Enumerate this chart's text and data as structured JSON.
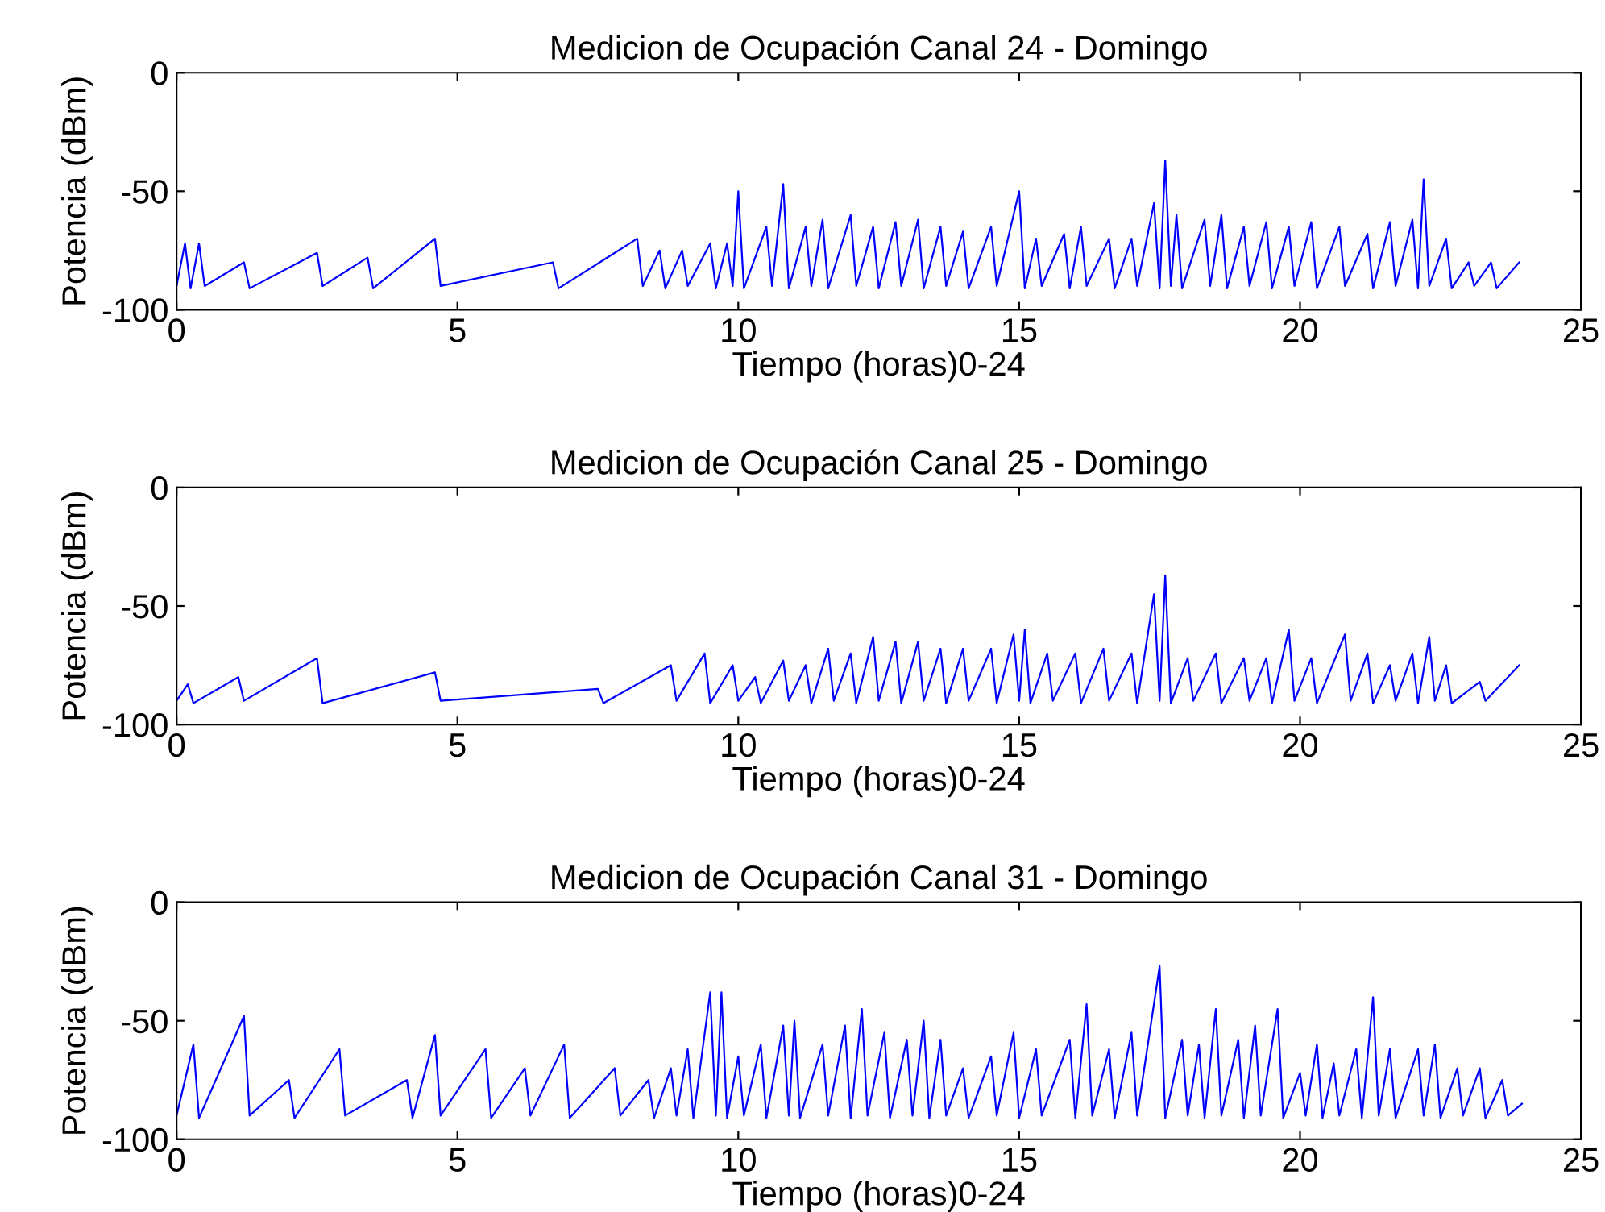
{
  "chart_data": [
    {
      "type": "line",
      "title": "Medicion de Ocupación Canal 24 - Domingo",
      "xlabel": "Tiempo (horas)0-24",
      "ylabel": "Potencia (dBm)",
      "xlim": [
        0,
        25
      ],
      "ylim": [
        -100,
        0
      ],
      "xticks": [
        0,
        5,
        10,
        15,
        20,
        25
      ],
      "yticks": [
        -100,
        -50,
        0
      ],
      "series": [
        {
          "color": "#0000ff",
          "x": [
            0,
            0.15,
            0.25,
            0.4,
            0.5,
            1.2,
            1.3,
            2.5,
            2.6,
            3.4,
            3.5,
            4.6,
            4.7,
            6.7,
            6.8,
            8.2,
            8.3,
            8.6,
            8.7,
            9.0,
            9.1,
            9.5,
            9.6,
            9.8,
            9.9,
            10.0,
            10.1,
            10.5,
            10.6,
            10.8,
            10.9,
            11.2,
            11.3,
            11.5,
            11.6,
            12.0,
            12.1,
            12.4,
            12.5,
            12.8,
            12.9,
            13.2,
            13.3,
            13.6,
            13.7,
            14.0,
            14.1,
            14.5,
            14.6,
            15.0,
            15.1,
            15.3,
            15.4,
            15.8,
            15.9,
            16.1,
            16.2,
            16.6,
            16.7,
            17.0,
            17.1,
            17.4,
            17.5,
            17.6,
            17.7,
            17.8,
            17.9,
            18.3,
            18.4,
            18.6,
            18.7,
            19.0,
            19.1,
            19.4,
            19.5,
            19.8,
            19.9,
            20.2,
            20.3,
            20.7,
            20.8,
            21.2,
            21.3,
            21.6,
            21.7,
            22.0,
            22.1,
            22.2,
            22.3,
            22.6,
            22.7,
            23.0,
            23.1,
            23.4,
            23.5,
            23.9
          ],
          "values": [
            -90,
            -72,
            -91,
            -72,
            -90,
            -80,
            -91,
            -76,
            -90,
            -78,
            -91,
            -70,
            -90,
            -80,
            -91,
            -70,
            -90,
            -75,
            -91,
            -75,
            -90,
            -72,
            -91,
            -72,
            -90,
            -50,
            -91,
            -65,
            -90,
            -47,
            -91,
            -65,
            -90,
            -62,
            -91,
            -60,
            -90,
            -65,
            -91,
            -63,
            -90,
            -62,
            -91,
            -65,
            -90,
            -67,
            -91,
            -65,
            -90,
            -50,
            -91,
            -70,
            -90,
            -68,
            -91,
            -65,
            -90,
            -70,
            -91,
            -70,
            -90,
            -55,
            -91,
            -37,
            -90,
            -60,
            -91,
            -62,
            -90,
            -60,
            -91,
            -65,
            -90,
            -63,
            -91,
            -65,
            -90,
            -63,
            -91,
            -65,
            -90,
            -68,
            -91,
            -63,
            -90,
            -62,
            -91,
            -45,
            -90,
            -70,
            -91,
            -80,
            -90,
            -80,
            -91,
            -80
          ]
        }
      ]
    },
    {
      "type": "line",
      "title": "Medicion de Ocupación Canal 25 - Domingo",
      "xlabel": "Tiempo (horas)0-24",
      "ylabel": "Potencia (dBm)",
      "xlim": [
        0,
        25
      ],
      "ylim": [
        -100,
        0
      ],
      "xticks": [
        0,
        5,
        10,
        15,
        20,
        25
      ],
      "yticks": [
        -100,
        -50,
        0
      ],
      "series": [
        {
          "color": "#0000ff",
          "x": [
            0,
            0.2,
            0.3,
            1.1,
            1.2,
            2.5,
            2.6,
            4.6,
            4.7,
            7.5,
            7.6,
            8.8,
            8.9,
            9.4,
            9.5,
            9.9,
            10.0,
            10.3,
            10.4,
            10.8,
            10.9,
            11.2,
            11.3,
            11.6,
            11.7,
            12.0,
            12.1,
            12.4,
            12.5,
            12.8,
            12.9,
            13.2,
            13.3,
            13.6,
            13.7,
            14.0,
            14.1,
            14.5,
            14.6,
            14.9,
            15.0,
            15.1,
            15.2,
            15.5,
            15.6,
            16.0,
            16.1,
            16.5,
            16.6,
            17.0,
            17.1,
            17.4,
            17.5,
            17.6,
            17.7,
            18.0,
            18.1,
            18.5,
            18.6,
            19.0,
            19.1,
            19.4,
            19.5,
            19.8,
            19.9,
            20.2,
            20.3,
            20.8,
            20.9,
            21.2,
            21.3,
            21.6,
            21.7,
            22.0,
            22.1,
            22.3,
            22.4,
            22.6,
            22.7,
            23.2,
            23.3,
            23.9
          ],
          "values": [
            -90,
            -83,
            -91,
            -80,
            -90,
            -72,
            -91,
            -78,
            -90,
            -85,
            -91,
            -75,
            -90,
            -70,
            -91,
            -75,
            -90,
            -80,
            -91,
            -73,
            -90,
            -75,
            -91,
            -68,
            -90,
            -70,
            -91,
            -63,
            -90,
            -65,
            -91,
            -65,
            -90,
            -68,
            -91,
            -68,
            -90,
            -68,
            -91,
            -62,
            -90,
            -60,
            -91,
            -70,
            -90,
            -70,
            -91,
            -68,
            -90,
            -70,
            -91,
            -45,
            -90,
            -37,
            -91,
            -72,
            -90,
            -70,
            -91,
            -72,
            -90,
            -72,
            -91,
            -60,
            -90,
            -72,
            -91,
            -62,
            -90,
            -70,
            -91,
            -75,
            -90,
            -70,
            -91,
            -63,
            -90,
            -75,
            -91,
            -82,
            -90,
            -75
          ]
        }
      ]
    },
    {
      "type": "line",
      "title": "Medicion de Ocupación Canal 31 - Domingo",
      "xlabel": "Tiempo (horas)0-24",
      "ylabel": "Potencia (dBm)",
      "xlim": [
        0,
        25
      ],
      "ylim": [
        -100,
        0
      ],
      "xticks": [
        0,
        5,
        10,
        15,
        20,
        25
      ],
      "yticks": [
        -100,
        -50,
        0
      ],
      "series": [
        {
          "color": "#0000ff",
          "x": [
            0,
            0.3,
            0.4,
            1.2,
            1.3,
            2.0,
            2.1,
            2.9,
            3.0,
            4.1,
            4.2,
            4.6,
            4.7,
            5.5,
            5.6,
            6.2,
            6.3,
            6.9,
            7.0,
            7.8,
            7.9,
            8.4,
            8.5,
            8.8,
            8.9,
            9.1,
            9.2,
            9.5,
            9.6,
            9.7,
            9.8,
            10.0,
            10.1,
            10.4,
            10.5,
            10.8,
            10.9,
            11.0,
            11.1,
            11.5,
            11.6,
            11.9,
            12.0,
            12.2,
            12.3,
            12.6,
            12.7,
            13.0,
            13.1,
            13.3,
            13.4,
            13.6,
            13.7,
            14.0,
            14.1,
            14.5,
            14.6,
            14.9,
            15.0,
            15.3,
            15.4,
            15.9,
            16.0,
            16.2,
            16.3,
            16.6,
            16.7,
            17.0,
            17.1,
            17.5,
            17.6,
            17.9,
            18.0,
            18.2,
            18.3,
            18.5,
            18.6,
            18.9,
            19.0,
            19.2,
            19.3,
            19.6,
            19.7,
            20.0,
            20.1,
            20.3,
            20.4,
            20.6,
            20.7,
            21.0,
            21.1,
            21.3,
            21.4,
            21.6,
            21.7,
            22.1,
            22.2,
            22.4,
            22.5,
            22.8,
            22.9,
            23.2,
            23.3,
            23.6,
            23.7,
            23.95
          ],
          "values": [
            -90,
            -60,
            -91,
            -48,
            -90,
            -75,
            -91,
            -62,
            -90,
            -75,
            -91,
            -56,
            -90,
            -62,
            -91,
            -70,
            -90,
            -60,
            -91,
            -70,
            -90,
            -75,
            -91,
            -70,
            -90,
            -62,
            -91,
            -38,
            -90,
            -38,
            -91,
            -65,
            -90,
            -60,
            -91,
            -52,
            -90,
            -50,
            -91,
            -60,
            -90,
            -52,
            -91,
            -45,
            -90,
            -55,
            -91,
            -58,
            -90,
            -50,
            -91,
            -58,
            -90,
            -70,
            -91,
            -65,
            -90,
            -55,
            -91,
            -62,
            -90,
            -58,
            -91,
            -43,
            -90,
            -62,
            -91,
            -55,
            -90,
            -27,
            -91,
            -58,
            -90,
            -60,
            -91,
            -45,
            -90,
            -58,
            -91,
            -52,
            -90,
            -45,
            -91,
            -72,
            -90,
            -60,
            -91,
            -68,
            -90,
            -62,
            -91,
            -40,
            -90,
            -62,
            -91,
            -62,
            -90,
            -60,
            -91,
            -70,
            -90,
            -70,
            -91,
            -75,
            -90,
            -85
          ]
        }
      ]
    }
  ]
}
